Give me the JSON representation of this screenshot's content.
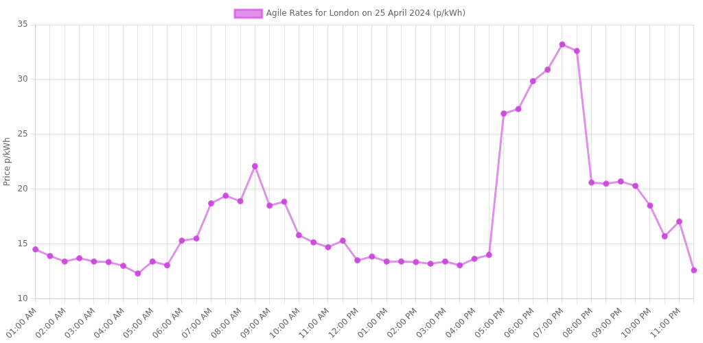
{
  "chart_data": {
    "type": "line",
    "y_label": "Price p/kWh",
    "categories": [
      "01:00 AM",
      null,
      "02:00 AM",
      null,
      "03:00 AM",
      null,
      "04:00 AM",
      null,
      "05:00 AM",
      null,
      "06:00 AM",
      null,
      "07:00 AM",
      null,
      "08:00 AM",
      null,
      "09:00 AM",
      null,
      "10:00 AM",
      null,
      "11:00 AM",
      null,
      "12:00 PM",
      null,
      "01:00 PM",
      null,
      "02:00 PM",
      null,
      "03:00 PM",
      null,
      "04:00 PM",
      null,
      "05:00 PM",
      null,
      "06:00 PM",
      null,
      "07:00 PM",
      null,
      "08:00 PM",
      null,
      "09:00 PM",
      null,
      "10:00 PM",
      null,
      "11:00 PM",
      null
    ],
    "series": [
      {
        "name": "Agile Rates for London on 25 April 2024 (p/kWh)",
        "color": "#cc44dd",
        "marker": "circle",
        "values": [
          14.5,
          13.9,
          13.4,
          13.7,
          13.4,
          13.35,
          13.0,
          12.3,
          13.4,
          13.05,
          15.3,
          15.5,
          18.7,
          19.4,
          18.9,
          22.1,
          18.5,
          18.85,
          15.8,
          15.15,
          14.7,
          15.3,
          13.5,
          13.85,
          13.4,
          13.4,
          13.35,
          13.2,
          13.4,
          13.05,
          13.65,
          14.0,
          26.9,
          27.3,
          29.85,
          30.9,
          33.2,
          32.6,
          20.6,
          20.5,
          20.7,
          20.3,
          18.5,
          15.7,
          17.05,
          12.6
        ]
      }
    ],
    "ylim": [
      10,
      35
    ],
    "yticks": [
      10,
      15,
      20,
      25,
      30,
      35
    ],
    "grid": true,
    "legend": "top"
  }
}
